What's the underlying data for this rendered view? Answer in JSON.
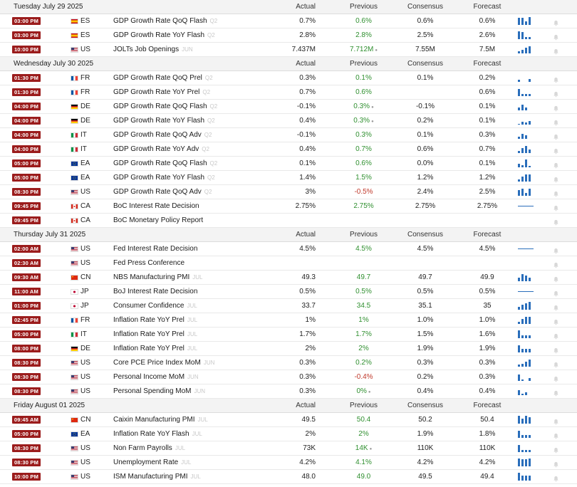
{
  "colors": {
    "time_badge": "#9b1c1c",
    "previous_up": "#2f8f2f",
    "previous_down": "#c0392b",
    "spark": "#2a6ebb"
  },
  "column_headers": {
    "actual": "Actual",
    "previous": "Previous",
    "consensus": "Consensus",
    "forecast": "Forecast"
  },
  "days": [
    {
      "date": "Tuesday July 29 2025",
      "events": [
        {
          "time": "03:00 PM",
          "flag": "flag-es",
          "country": "ES",
          "event": "GDP Growth Rate QoQ Flash",
          "ref": "Q2",
          "actual": "0.7%",
          "previous": "0.6%",
          "prev_trend": "up",
          "prev_revised": false,
          "consensus": "0.6%",
          "forecast": "0.6%",
          "spark": "bars",
          "bars": [
            0.9,
            0.9,
            0.5,
            1.0
          ]
        },
        {
          "time": "03:00 PM",
          "flag": "flag-es",
          "country": "ES",
          "event": "GDP Growth Rate YoY Flash",
          "ref": "Q2",
          "actual": "2.8%",
          "previous": "2.8%",
          "prev_trend": "up",
          "prev_revised": false,
          "consensus": "2.5%",
          "forecast": "2.6%",
          "spark": "bars",
          "bars": [
            1.0,
            0.9,
            0.3,
            0.3
          ]
        },
        {
          "time": "10:00 PM",
          "flag": "flag-us",
          "country": "US",
          "event": "JOLTs Job Openings",
          "ref": "JUN",
          "actual": "7.437M",
          "previous": "7.712M",
          "prev_trend": "up",
          "prev_revised": true,
          "consensus": "7.55M",
          "forecast": "7.5M",
          "spark": "bars",
          "bars": [
            0.3,
            0.5,
            0.7,
            0.9
          ]
        }
      ]
    },
    {
      "date": "Wednesday July 30 2025",
      "events": [
        {
          "time": "01:30 PM",
          "flag": "flag-fr",
          "country": "FR",
          "event": "GDP Growth Rate QoQ Prel",
          "ref": "Q2",
          "actual": "0.3%",
          "previous": "0.1%",
          "prev_trend": "up",
          "prev_revised": false,
          "consensus": "0.1%",
          "forecast": "0.2%",
          "spark": "bars",
          "bars": [
            0.3,
            0,
            0,
            0.4
          ]
        },
        {
          "time": "01:30 PM",
          "flag": "flag-fr",
          "country": "FR",
          "event": "GDP Growth Rate YoY Prel",
          "ref": "Q2",
          "actual": "0.7%",
          "previous": "0.6%",
          "prev_trend": "up",
          "prev_revised": false,
          "consensus": "",
          "forecast": "0.6%",
          "spark": "bars",
          "bars": [
            0.9,
            0.3,
            0.3,
            0.3
          ]
        },
        {
          "time": "04:00 PM",
          "flag": "flag-de",
          "country": "DE",
          "event": "GDP Growth Rate QoQ Flash",
          "ref": "Q2",
          "actual": "-0.1%",
          "previous": "0.3%",
          "prev_trend": "up",
          "prev_revised": true,
          "consensus": "-0.1%",
          "forecast": "0.1%",
          "spark": "bars",
          "bars": [
            0.4,
            0.7,
            0.4,
            0
          ]
        },
        {
          "time": "04:00 PM",
          "flag": "flag-de",
          "country": "DE",
          "event": "GDP Growth Rate YoY Flash",
          "ref": "Q2",
          "actual": "0.4%",
          "previous": "0.3%",
          "prev_trend": "up",
          "prev_revised": true,
          "consensus": "0.2%",
          "forecast": "0.1%",
          "spark": "bars",
          "bars": [
            0.1,
            0.4,
            0.3,
            0.5
          ]
        },
        {
          "time": "04:00 PM",
          "flag": "flag-it",
          "country": "IT",
          "event": "GDP Growth Rate QoQ Adv",
          "ref": "Q2",
          "actual": "-0.1%",
          "previous": "0.3%",
          "prev_trend": "up",
          "prev_revised": false,
          "consensus": "0.1%",
          "forecast": "0.3%",
          "spark": "bars",
          "bars": [
            0.3,
            0.6,
            0.5,
            0
          ]
        },
        {
          "time": "04:00 PM",
          "flag": "flag-it",
          "country": "IT",
          "event": "GDP Growth Rate YoY Adv",
          "ref": "Q2",
          "actual": "0.4%",
          "previous": "0.7%",
          "prev_trend": "up",
          "prev_revised": false,
          "consensus": "0.6%",
          "forecast": "0.7%",
          "spark": "bars",
          "bars": [
            0.3,
            0.6,
            0.9,
            0.5
          ]
        },
        {
          "time": "05:00 PM",
          "flag": "flag-eu",
          "country": "EA",
          "event": "GDP Growth Rate QoQ Flash",
          "ref": "Q2",
          "actual": "0.1%",
          "previous": "0.6%",
          "prev_trend": "up",
          "prev_revised": false,
          "consensus": "0.0%",
          "forecast": "0.1%",
          "spark": "bars",
          "bars": [
            0.5,
            0.3,
            1.0,
            0.2
          ]
        },
        {
          "time": "05:00 PM",
          "flag": "flag-eu",
          "country": "EA",
          "event": "GDP Growth Rate YoY Flash",
          "ref": "Q2",
          "actual": "1.4%",
          "previous": "1.5%",
          "prev_trend": "up",
          "prev_revised": false,
          "consensus": "1.2%",
          "forecast": "1.2%",
          "spark": "bars",
          "bars": [
            0.3,
            0.6,
            0.9,
            0.9
          ]
        },
        {
          "time": "08:30 PM",
          "flag": "flag-us",
          "country": "US",
          "event": "GDP Growth Rate QoQ Adv",
          "ref": "Q2",
          "actual": "3%",
          "previous": "-0.5%",
          "prev_trend": "down",
          "prev_revised": false,
          "consensus": "2.4%",
          "forecast": "2.5%",
          "spark": "bars",
          "bars": [
            0.7,
            0.9,
            0.4,
            0.9
          ]
        },
        {
          "time": "09:45 PM",
          "flag": "flag-ca",
          "country": "CA",
          "event": "BoC Interest Rate Decision",
          "ref": "",
          "actual": "2.75%",
          "previous": "2.75%",
          "prev_trend": "up",
          "prev_revised": false,
          "consensus": "2.75%",
          "forecast": "2.75%",
          "spark": "line",
          "bars": []
        },
        {
          "time": "09:45 PM",
          "flag": "flag-ca",
          "country": "CA",
          "event": "BoC Monetary Policy Report",
          "ref": "",
          "actual": "",
          "previous": "",
          "prev_trend": "neu",
          "prev_revised": false,
          "consensus": "",
          "forecast": "",
          "spark": "none",
          "bars": []
        }
      ]
    },
    {
      "date": "Thursday July 31 2025",
      "events": [
        {
          "time": "02:00 AM",
          "flag": "flag-us",
          "country": "US",
          "event": "Fed Interest Rate Decision",
          "ref": "",
          "actual": "4.5%",
          "previous": "4.5%",
          "prev_trend": "up",
          "prev_revised": false,
          "consensus": "4.5%",
          "forecast": "4.5%",
          "spark": "line",
          "bars": []
        },
        {
          "time": "02:30 AM",
          "flag": "flag-us",
          "country": "US",
          "event": "Fed Press Conference",
          "ref": "",
          "actual": "",
          "previous": "",
          "prev_trend": "neu",
          "prev_revised": false,
          "consensus": "",
          "forecast": "",
          "spark": "none",
          "bars": []
        },
        {
          "time": "09:30 AM",
          "flag": "flag-cn",
          "country": "CN",
          "event": "NBS Manufacturing PMI",
          "ref": "JUL",
          "actual": "49.3",
          "previous": "49.7",
          "prev_trend": "up",
          "prev_revised": false,
          "consensus": "49.7",
          "forecast": "49.9",
          "spark": "bars",
          "bars": [
            0.5,
            0.9,
            0.7,
            0.5
          ]
        },
        {
          "time": "11:00 AM",
          "flag": "flag-jp",
          "country": "JP",
          "event": "BoJ Interest Rate Decision",
          "ref": "",
          "actual": "0.5%",
          "previous": "0.5%",
          "prev_trend": "up",
          "prev_revised": false,
          "consensus": "0.5%",
          "forecast": "0.5%",
          "spark": "line",
          "bars": []
        },
        {
          "time": "01:00 PM",
          "flag": "flag-jp",
          "country": "JP",
          "event": "Consumer Confidence",
          "ref": "JUL",
          "actual": "33.7",
          "previous": "34.5",
          "prev_trend": "up",
          "prev_revised": false,
          "consensus": "35.1",
          "forecast": "35",
          "spark": "bars",
          "bars": [
            0.4,
            0.6,
            0.8,
            1.0
          ]
        },
        {
          "time": "02:45 PM",
          "flag": "flag-fr",
          "country": "FR",
          "event": "Inflation Rate YoY Prel",
          "ref": "JUL",
          "actual": "1%",
          "previous": "1%",
          "prev_trend": "up",
          "prev_revised": false,
          "consensus": "1.0%",
          "forecast": "1.0%",
          "spark": "bars",
          "bars": [
            0.3,
            0.6,
            0.9,
            0.9
          ]
        },
        {
          "time": "05:00 PM",
          "flag": "flag-it",
          "country": "IT",
          "event": "Inflation Rate YoY Prel",
          "ref": "JUL",
          "actual": "1.7%",
          "previous": "1.7%",
          "prev_trend": "up",
          "prev_revised": false,
          "consensus": "1.5%",
          "forecast": "1.6%",
          "spark": "bars",
          "bars": [
            1.0,
            0.4,
            0.4,
            0.4
          ]
        },
        {
          "time": "08:00 PM",
          "flag": "flag-de",
          "country": "DE",
          "event": "Inflation Rate YoY Prel",
          "ref": "JUL",
          "actual": "2%",
          "previous": "2%",
          "prev_trend": "up",
          "prev_revised": false,
          "consensus": "1.9%",
          "forecast": "1.9%",
          "spark": "bars",
          "bars": [
            0.9,
            0.5,
            0.5,
            0.5
          ]
        },
        {
          "time": "08:30 PM",
          "flag": "flag-us",
          "country": "US",
          "event": "Core PCE Price Index MoM",
          "ref": "JUN",
          "actual": "0.3%",
          "previous": "0.2%",
          "prev_trend": "up",
          "prev_revised": false,
          "consensus": "0.3%",
          "forecast": "0.3%",
          "spark": "bars",
          "bars": [
            0.3,
            0.4,
            0.6,
            0.9
          ]
        },
        {
          "time": "08:30 PM",
          "flag": "flag-us",
          "country": "US",
          "event": "Personal Income MoM",
          "ref": "JUN",
          "actual": "0.3%",
          "previous": "-0.4%",
          "prev_trend": "down",
          "prev_revised": false,
          "consensus": "0.2%",
          "forecast": "0.3%",
          "spark": "bars",
          "bars": [
            0.8,
            0.2,
            0,
            0.4
          ]
        },
        {
          "time": "08:30 PM",
          "flag": "flag-us",
          "country": "US",
          "event": "Personal Spending MoM",
          "ref": "JUN",
          "actual": "0.3%",
          "previous": "0%",
          "prev_trend": "up",
          "prev_revised": true,
          "consensus": "0.4%",
          "forecast": "0.4%",
          "spark": "bars",
          "bars": [
            0.6,
            0.2,
            0.4,
            0
          ]
        }
      ]
    },
    {
      "date": "Friday August 01 2025",
      "events": [
        {
          "time": "09:45 AM",
          "flag": "flag-cn",
          "country": "CN",
          "event": "Caixin Manufacturing PMI",
          "ref": "JUL",
          "actual": "49.5",
          "previous": "50.4",
          "prev_trend": "up",
          "prev_revised": false,
          "consensus": "50.2",
          "forecast": "50.4",
          "spark": "bars",
          "bars": [
            1.0,
            0.6,
            1.0,
            0.8
          ]
        },
        {
          "time": "05:00 PM",
          "flag": "flag-eu",
          "country": "EA",
          "event": "Inflation Rate YoY Flash",
          "ref": "JUL",
          "actual": "2%",
          "previous": "2%",
          "prev_trend": "up",
          "prev_revised": false,
          "consensus": "1.9%",
          "forecast": "1.8%",
          "spark": "bars",
          "bars": [
            0.9,
            0.4,
            0.4,
            0.4
          ]
        },
        {
          "time": "08:30 PM",
          "flag": "flag-us",
          "country": "US",
          "event": "Non Farm Payrolls",
          "ref": "JUL",
          "actual": "73K",
          "previous": "14K",
          "prev_trend": "up",
          "prev_revised": true,
          "consensus": "110K",
          "forecast": "110K",
          "spark": "bars",
          "bars": [
            0.9,
            0.3,
            0.3,
            0.3
          ]
        },
        {
          "time": "08:30 PM",
          "flag": "flag-us",
          "country": "US",
          "event": "Unemployment Rate",
          "ref": "JUL",
          "actual": "4.2%",
          "previous": "4.1%",
          "prev_trend": "up",
          "prev_revised": false,
          "consensus": "4.2%",
          "forecast": "4.2%",
          "spark": "bars",
          "bars": [
            1.0,
            0.9,
            0.9,
            1.0
          ]
        },
        {
          "time": "10:00 PM",
          "flag": "flag-us",
          "country": "US",
          "event": "ISM Manufacturing PMI",
          "ref": "JUL",
          "actual": "48.0",
          "previous": "49.0",
          "prev_trend": "up",
          "prev_revised": false,
          "consensus": "49.5",
          "forecast": "49.4",
          "spark": "bars",
          "bars": [
            1.0,
            0.6,
            0.6,
            0.6
          ]
        }
      ]
    }
  ]
}
